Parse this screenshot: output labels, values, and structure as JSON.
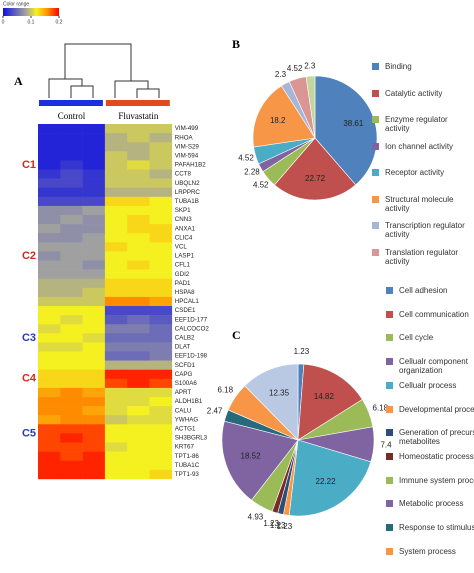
{
  "chart_data": [
    {
      "type": "heatmap",
      "panel": "A",
      "color_label": "Color range",
      "color_lim": [
        0,
        0.2
      ],
      "color_ticks": [
        0,
        0.1,
        0.2
      ],
      "colors": [
        "#1010e0",
        "#5a5ac0",
        "#a0a0a0",
        "#f5f020",
        "#ff8c00",
        "#ff0000"
      ],
      "groups": [
        {
          "name": "Control",
          "color": "#1a2fe0"
        },
        {
          "name": "Fluvastatin",
          "color": "#e04a20"
        }
      ],
      "rows": [
        "VIM-499",
        "RHOA",
        "VIM-S29",
        "VIM-594",
        "PAFAH1B2",
        "CCT8",
        "UBQLN2",
        "LRPPRC",
        "TUBA1B",
        "SKP1",
        "CNN3",
        "ANXA1",
        "CLIC4",
        "VCL",
        "LASP1",
        "CFL1",
        "GDI2",
        "PAD1",
        "HSPA8",
        "HPCAL1",
        "CSDE1",
        "EEF1D-177",
        "CALCOCO2",
        "CALB2",
        "DLAT",
        "EEF1D-198",
        "SCFD1",
        "CAPG",
        "S100A6",
        "APRT",
        "ALDH1B1",
        "CALU",
        "YWHAG",
        "ACTG1",
        "SH3BGRL3",
        "KRT67",
        "TPT1-86",
        "TUBA1C",
        "TPT1-93"
      ],
      "values": [
        [
          0.01,
          0.01,
          0.01,
          0.1,
          0.1,
          0.1
        ],
        [
          0.01,
          0.01,
          0.01,
          0.09,
          0.1,
          0.09
        ],
        [
          0.01,
          0.01,
          0.01,
          0.09,
          0.09,
          0.1
        ],
        [
          0.01,
          0.01,
          0.01,
          0.1,
          0.09,
          0.1
        ],
        [
          0.01,
          0.02,
          0.01,
          0.1,
          0.11,
          0.1
        ],
        [
          0.02,
          0.03,
          0.02,
          0.1,
          0.1,
          0.09
        ],
        [
          0.03,
          0.03,
          0.02,
          0.1,
          0.1,
          0.1
        ],
        [
          0.02,
          0.02,
          0.02,
          0.09,
          0.09,
          0.09
        ],
        [
          0.03,
          0.03,
          0.03,
          0.13,
          0.13,
          0.12
        ],
        [
          0.07,
          0.07,
          0.08,
          0.12,
          0.12,
          0.12
        ],
        [
          0.07,
          0.08,
          0.07,
          0.12,
          0.13,
          0.12
        ],
        [
          0.08,
          0.07,
          0.07,
          0.12,
          0.13,
          0.13
        ],
        [
          0.07,
          0.07,
          0.08,
          0.12,
          0.12,
          0.13
        ],
        [
          0.08,
          0.08,
          0.08,
          0.13,
          0.12,
          0.12
        ],
        [
          0.07,
          0.08,
          0.08,
          0.12,
          0.12,
          0.12
        ],
        [
          0.08,
          0.08,
          0.07,
          0.12,
          0.13,
          0.12
        ],
        [
          0.08,
          0.08,
          0.08,
          0.12,
          0.12,
          0.12
        ],
        [
          0.09,
          0.09,
          0.09,
          0.13,
          0.13,
          0.13
        ],
        [
          0.09,
          0.09,
          0.1,
          0.13,
          0.13,
          0.13
        ],
        [
          0.1,
          0.1,
          0.1,
          0.16,
          0.16,
          0.15
        ],
        [
          0.12,
          0.12,
          0.12,
          0.03,
          0.03,
          0.03
        ],
        [
          0.12,
          0.11,
          0.12,
          0.04,
          0.05,
          0.04
        ],
        [
          0.11,
          0.12,
          0.12,
          0.06,
          0.06,
          0.05
        ],
        [
          0.12,
          0.12,
          0.11,
          0.05,
          0.05,
          0.05
        ],
        [
          0.11,
          0.11,
          0.12,
          0.06,
          0.06,
          0.06
        ],
        [
          0.12,
          0.12,
          0.12,
          0.05,
          0.05,
          0.06
        ],
        [
          0.12,
          0.12,
          0.12,
          0.09,
          0.09,
          0.09
        ],
        [
          0.13,
          0.13,
          0.13,
          0.19,
          0.19,
          0.19
        ],
        [
          0.13,
          0.13,
          0.13,
          0.18,
          0.19,
          0.18
        ],
        [
          0.15,
          0.16,
          0.15,
          0.11,
          0.11,
          0.11
        ],
        [
          0.16,
          0.16,
          0.16,
          0.11,
          0.11,
          0.12
        ],
        [
          0.16,
          0.16,
          0.15,
          0.11,
          0.12,
          0.11
        ],
        [
          0.15,
          0.16,
          0.16,
          0.1,
          0.11,
          0.11
        ],
        [
          0.18,
          0.18,
          0.18,
          0.12,
          0.12,
          0.12
        ],
        [
          0.18,
          0.19,
          0.18,
          0.12,
          0.12,
          0.12
        ],
        [
          0.18,
          0.18,
          0.18,
          0.11,
          0.12,
          0.12
        ],
        [
          0.19,
          0.18,
          0.19,
          0.12,
          0.12,
          0.12
        ],
        [
          0.19,
          0.19,
          0.19,
          0.12,
          0.12,
          0.12
        ],
        [
          0.19,
          0.19,
          0.19,
          0.12,
          0.12,
          0.13
        ]
      ],
      "clusters": [
        {
          "label": "C1",
          "color": "#d42a1a",
          "first_row": 0,
          "last_row": 8
        },
        {
          "label": "C2",
          "color": "#d42a1a",
          "first_row": 9,
          "last_row": 19
        },
        {
          "label": "C3",
          "color": "#2a3ab0",
          "first_row": 20,
          "last_row": 26
        },
        {
          "label": "C4",
          "color": "#d42a1a",
          "first_row": 27,
          "last_row": 28
        },
        {
          "label": "C5",
          "color": "#2a3ab0",
          "first_row": 29,
          "last_row": 38
        }
      ]
    },
    {
      "type": "pie",
      "panel": "B",
      "categories": [
        "Binding",
        "Catalytic activity",
        "Enzyme regulator activity",
        "Ion channel activity",
        "Receptor activity",
        "Structural molecule activity",
        "Transcription regulator activity",
        "Translation regulator activity",
        null
      ],
      "values": [
        38.61,
        22.72,
        4.52,
        2.28,
        4.52,
        18.2,
        2.3,
        4.52,
        2.3
      ],
      "colors": [
        "#4f81bd",
        "#c0504d",
        "#9bbb59",
        "#8064a2",
        "#4bacc6",
        "#f79646",
        "#a5b6d8",
        "#d99694",
        "#c3d69b"
      ]
    },
    {
      "type": "pie",
      "panel": "C",
      "categories": [
        "Cell adhesion",
        "Cell communication",
        "Cell cycle",
        "Cellualr component organization",
        "Cellualr process",
        "Developmental proce",
        "Generation of precurs metabolites",
        "Homeostatic process",
        "Immune system process",
        "Metabolic process",
        "Response to stimulus",
        "System process",
        null
      ],
      "values": [
        1.23,
        14.82,
        6.18,
        7.4,
        22.22,
        1.23,
        1.23,
        1.23,
        4.93,
        18.52,
        2.47,
        6.18,
        12.35
      ],
      "colors": [
        "#4f81bd",
        "#c0504d",
        "#9bbb59",
        "#8064a2",
        "#4bacc6",
        "#f79646",
        "#2c4d75",
        "#772c2a",
        "#9bbb59",
        "#8064a2",
        "#276a7c",
        "#f79646",
        "#b9c9e4"
      ]
    }
  ]
}
